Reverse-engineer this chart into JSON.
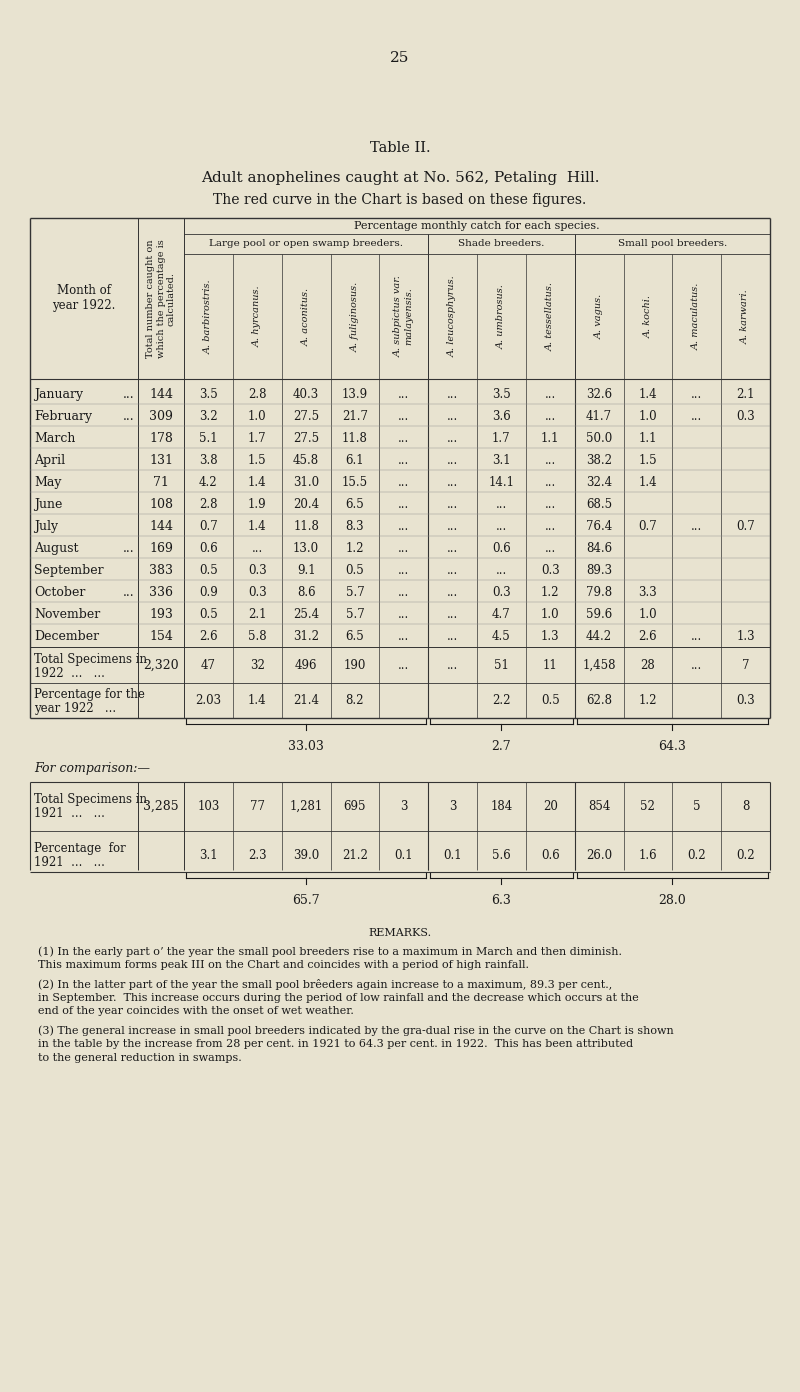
{
  "page_number": "25",
  "table_title": "Table II.",
  "table_subtitle1": "Adult anophelines caught at No. 562, Petaling  Hill.",
  "table_subtitle2": "The red curve in the Chart is based on these figures.",
  "bg_color": "#e8e3d0",
  "text_color": "#1a1a1a",
  "header_groups": {
    "large_pool": "Large pool or open swamp breeders.",
    "shade": "Shade breeders.",
    "small_pool": "Small pool breeders."
  },
  "col_header_row1": "Percentage monthly catch for each species.",
  "row_label_col1": "Month of\nyear 1922.",
  "row_label_col2": "Total number caught on\nwhich the percentage is\ncalculated.",
  "species_headers": [
    "A. barbirostris.",
    "A. hyrcanus.",
    "A. aconitus.",
    "A. fuliginosus.",
    "A. subpictus var.\nmalayensis.",
    "A. leucosphyrus.",
    "A. umbrosus.",
    "A. tessellatus.",
    "A. vagus.",
    "A. kochi.",
    "A. maculatus.",
    "A. karwari."
  ],
  "months": [
    "January ...",
    "February...",
    "March",
    "April",
    "May",
    "June",
    "July",
    "August ...",
    "September",
    "October ...",
    "November",
    "December"
  ],
  "months_dots": [
    true,
    true,
    false,
    false,
    false,
    false,
    false,
    true,
    false,
    true,
    false,
    false
  ],
  "totals_col": [
    144,
    309,
    178,
    131,
    71,
    108,
    144,
    169,
    383,
    336,
    193,
    154
  ],
  "data": [
    [
      "3.5",
      "2.8",
      "40.3",
      "13.9",
      "...",
      "...",
      "3.5",
      "...",
      "32.6",
      "1.4",
      "...",
      "2.1"
    ],
    [
      "3.2",
      "1.0",
      "27.5",
      "21.7",
      "...",
      "...",
      "3.6",
      "...",
      "41.7",
      "1.0",
      "...",
      "0.3"
    ],
    [
      "5.1",
      "1.7",
      "27.5",
      "11.8",
      "...",
      "...",
      "1.7",
      "1.1",
      "50.0",
      "1.1",
      "",
      ""
    ],
    [
      "3.8",
      "1.5",
      "45.8",
      "6.1",
      "...",
      "...",
      "3.1",
      "...",
      "38.2",
      "1.5",
      "",
      ""
    ],
    [
      "4.2",
      "1.4",
      "31.0",
      "15.5",
      "...",
      "...",
      "14.1",
      "...",
      "32.4",
      "1.4",
      "",
      ""
    ],
    [
      "2.8",
      "1.9",
      "20.4",
      "6.5",
      "...",
      "...",
      "...",
      "...",
      "68.5",
      "",
      "",
      ""
    ],
    [
      "0.7",
      "1.4",
      "11.8",
      "8.3",
      "...",
      "...",
      "...",
      "...",
      "76.4",
      "0.7",
      "...",
      "0.7"
    ],
    [
      "0.6",
      "...",
      "13.0",
      "1.2",
      "...",
      "...",
      "0.6",
      "...",
      "84.6",
      "",
      "",
      ""
    ],
    [
      "0.5",
      "0.3",
      "9.1",
      "0.5",
      "...",
      "...",
      "...",
      "0.3",
      "89.3",
      "",
      "",
      ""
    ],
    [
      "0.9",
      "0.3",
      "8.6",
      "5.7",
      "...",
      "...",
      "0.3",
      "1.2",
      "79.8",
      "3.3",
      "",
      ""
    ],
    [
      "0.5",
      "2.1",
      "25.4",
      "5.7",
      "...",
      "...",
      "4.7",
      "1.0",
      "59.6",
      "1.0",
      "",
      ""
    ],
    [
      "2.6",
      "5.8",
      "31.2",
      "6.5",
      "...",
      "...",
      "4.5",
      "1.3",
      "44.2",
      "2.6",
      "...",
      "1.3"
    ]
  ],
  "total_specimens_1922": [
    "2,320",
    "47",
    "32",
    "496",
    "190",
    "...",
    "...",
    "51",
    "11",
    "1,458",
    "28",
    "...",
    "7"
  ],
  "pct_year_1922": [
    "...",
    "2.03",
    "1.4",
    "21.4",
    "8.2",
    "...",
    "...",
    "2.2",
    "0.5",
    "62.8",
    "1.2",
    "...",
    "0.3"
  ],
  "subtotals_1922": [
    "33.03",
    "2.7",
    "64.3"
  ],
  "comparison_label": "For comparison:—",
  "total_specimens_1921": [
    "3,285",
    "103",
    "77",
    "1,281",
    "695",
    "3",
    "3",
    "184",
    "20",
    "854",
    "52",
    "5",
    "8"
  ],
  "pct_year_1921": [
    "...",
    "3.1",
    "2.3",
    "39.0",
    "21.2",
    "0.1",
    "0.1",
    "5.6",
    "0.6",
    "26.0",
    "1.6",
    "0.2",
    "0.2"
  ],
  "subtotals_1921": [
    "65.7",
    "6.3",
    "28.0"
  ],
  "remarks_title": "remarks.",
  "remarks": [
    "(1) In the early part oʼ the year the small pool breeders rise to a maximum in March and then diminish.\n      This maximum forms peak III on the Chart and coincides with a period of high rainfall.",
    "(2) In the latter part of the year the small pool brêeders again increase to a maximum, 89.3 per cent.,\n      in September.  This increase occurs during the period of low rainfall and the decrease which occurs at the\n      end of the year coincides with the onset of wet weather.",
    "(3) The general increase in small pool breeders indicated by the gra­dual rise in the curve on the Chart is shown\n      in the table by the increase from 28 per cent. in 1921 to 64.3 per cent. in 1922.  This has been attributed\n      to the general reduction in swamps."
  ]
}
